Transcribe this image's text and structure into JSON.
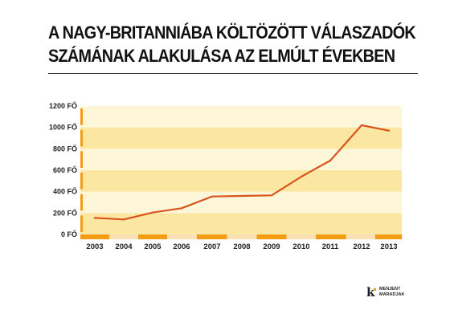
{
  "header": {
    "title_line1": "A NAGY-BRITANNIÁBA KÖLTÖZÖTT VÁLASZADÓK",
    "title_line2": "SZÁMÁNAK ALAKULÁSA AZ ELMÚLT ÉVEKBEN"
  },
  "logo": {
    "mark": "k",
    "line1": "MENJEN?",
    "line2": "MARADJAK"
  },
  "colors": {
    "band_dark": "#fbe7a1",
    "band_light": "#fef6d8",
    "accent": "#f39c12",
    "line": "#d9541e",
    "xband_light": "#fae0b5"
  },
  "chart_data": {
    "type": "line",
    "title": "A NAGY-BRITANNIÁBA KÖLTÖZÖTT VÁLASZADÓK SZÁMÁNAK ALAKULÁSA AZ ELMÚLT ÉVEKBEN",
    "xlabel": "",
    "ylabel": "",
    "categories": [
      "2003",
      "2004",
      "2005",
      "2006",
      "2007",
      "2008",
      "2009",
      "2010",
      "2011",
      "2012",
      "2013"
    ],
    "values": [
      155,
      140,
      205,
      245,
      355,
      360,
      365,
      540,
      690,
      1020,
      970
    ],
    "ylim": [
      0,
      1200
    ],
    "yticks": [
      0,
      200,
      400,
      600,
      800,
      1000,
      1200
    ],
    "ytick_labels": [
      "0 FŐ",
      "200 FŐ",
      "400 FŐ",
      "600 FŐ",
      "800 FŐ",
      "1000 FŐ",
      "1200 FŐ"
    ],
    "grid": "alternating horizontal bands",
    "legend": "none"
  }
}
